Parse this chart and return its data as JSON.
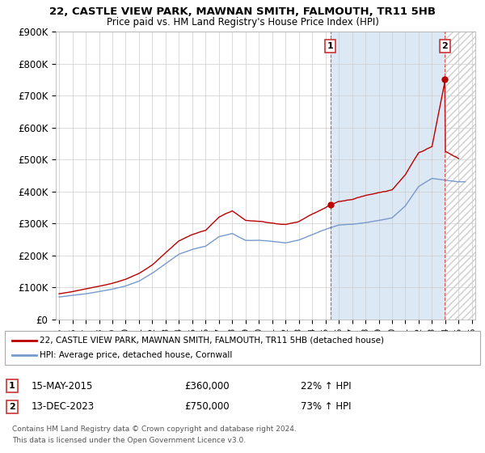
{
  "title": "22, CASTLE VIEW PARK, MAWNAN SMITH, FALMOUTH, TR11 5HB",
  "subtitle": "Price paid vs. HM Land Registry's House Price Index (HPI)",
  "legend_line1": "22, CASTLE VIEW PARK, MAWNAN SMITH, FALMOUTH, TR11 5HB (detached house)",
  "legend_line2": "HPI: Average price, detached house, Cornwall",
  "footnote1": "Contains HM Land Registry data © Crown copyright and database right 2024.",
  "footnote2": "This data is licensed under the Open Government Licence v3.0.",
  "annotation1_label": "1",
  "annotation1_date": "15-MAY-2015",
  "annotation1_price": "£360,000",
  "annotation1_hpi": "22% ↑ HPI",
  "annotation2_label": "2",
  "annotation2_date": "13-DEC-2023",
  "annotation2_price": "£750,000",
  "annotation2_hpi": "73% ↑ HPI",
  "red_line_color": "#bb0000",
  "blue_line_color": "#7799cc",
  "vline_color": "#cc3333",
  "grid_color": "#cccccc",
  "bg_color": "#ffffff",
  "shade_color": "#dde8f5",
  "hatch_color": "#cccccc",
  "xlim": [
    1994.75,
    2026.25
  ],
  "ylim": [
    0,
    900000
  ],
  "yticks": [
    0,
    100000,
    200000,
    300000,
    400000,
    500000,
    600000,
    700000,
    800000,
    900000
  ],
  "ytick_labels": [
    "£0",
    "£100K",
    "£200K",
    "£300K",
    "£400K",
    "£500K",
    "£600K",
    "£700K",
    "£800K",
    "£900K"
  ],
  "xticks": [
    1995,
    1996,
    1997,
    1998,
    1999,
    2000,
    2001,
    2002,
    2003,
    2004,
    2005,
    2006,
    2007,
    2008,
    2009,
    2010,
    2011,
    2012,
    2013,
    2014,
    2015,
    2016,
    2017,
    2018,
    2019,
    2020,
    2021,
    2022,
    2023,
    2024,
    2025,
    2026
  ],
  "point1_x": 2015.37,
  "point1_y": 360000,
  "point2_x": 2023.96,
  "point2_y": 750000
}
